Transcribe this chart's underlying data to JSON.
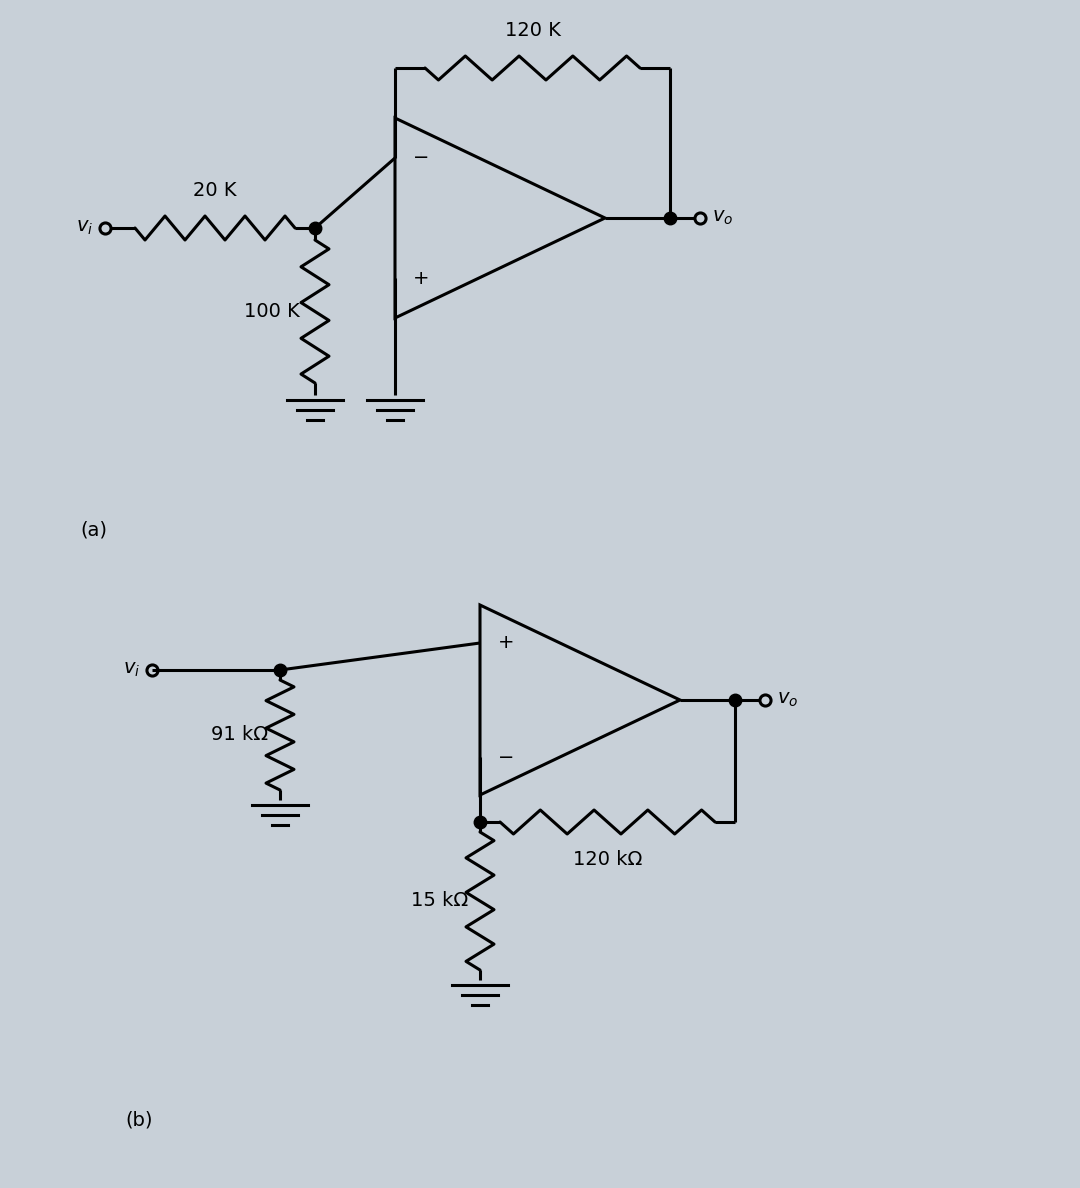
{
  "bg_color": "#c8d0d8",
  "line_color": "#000000",
  "line_width": 2.2,
  "dot_size": 9,
  "figsize": [
    10.8,
    11.88
  ],
  "dpi": 100,
  "font_size": 14,
  "circuit_a": {
    "label": "(a)",
    "r20k": "20 K",
    "r100k": "100 K",
    "r120k": "120 K",
    "vi_label": "$v_i$",
    "vo_label": "$v_o$"
  },
  "circuit_b": {
    "label": "(b)",
    "r91k": "91 kΩ",
    "r15k": "15 kΩ",
    "r120k": "120 kΩ",
    "vi_label": "$v_i$",
    "vo_label": "$v_o$"
  }
}
